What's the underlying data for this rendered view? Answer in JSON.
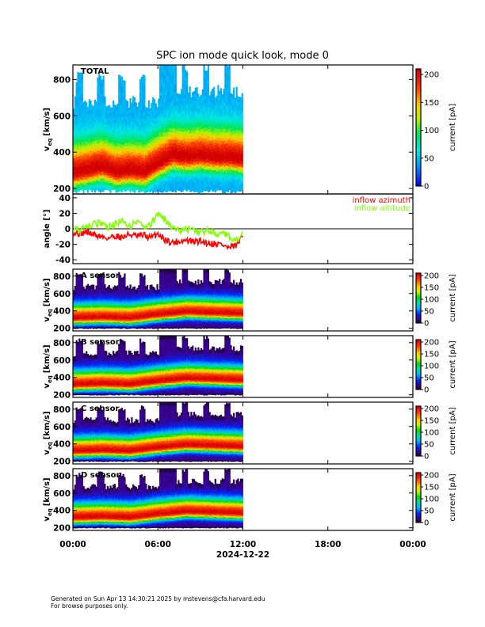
{
  "title": "SPC ion mode quick look, mode 0",
  "footer": {
    "line1": "Generated on Sun Apr 13 14:30:21 2025 by mstevens@cfa.harvard.edu",
    "line2": "For browse purposes only."
  },
  "colors": {
    "azimuth": "#ff0000",
    "altitude": "#80ff00"
  },
  "chart_data": [
    {
      "type": "heatmap",
      "panel": "total",
      "label": "TOTAL",
      "ylabel_main": "v",
      "ylabel_sub": "eq",
      "ylabel_units": "[km/s]",
      "ylim": [
        170,
        880
      ],
      "yticks": [
        "200",
        "400",
        "600",
        "800"
      ],
      "colorbar": {
        "label": "current [pA]",
        "ticks": [
          "0",
          "50",
          "100",
          "150",
          "200"
        ],
        "range": [
          0,
          210
        ]
      },
      "peak_profile": [
        [
          0,
          285
        ],
        [
          1,
          300
        ],
        [
          2,
          320
        ],
        [
          3,
          290
        ],
        [
          4,
          300
        ],
        [
          5,
          290
        ],
        [
          6,
          340
        ],
        [
          7,
          380
        ],
        [
          8,
          370
        ],
        [
          9,
          380
        ],
        [
          10,
          370
        ],
        [
          11,
          370
        ],
        [
          12,
          360
        ]
      ],
      "data_x_range": [
        0,
        12
      ]
    },
    {
      "type": "line",
      "panel": "angle",
      "ylabel": "angle [°]",
      "ylim": [
        -45,
        45
      ],
      "yticks": [
        "40",
        "20",
        "0",
        "-20",
        "-40"
      ],
      "legend_position": "top-right",
      "series": [
        {
          "name": "inflow azimuth",
          "color": "#ff0000",
          "x": [
            0,
            0.5,
            1,
            1.5,
            2,
            2.5,
            3,
            3.5,
            4,
            4.5,
            5,
            5.5,
            6,
            6.5,
            7,
            7.5,
            8,
            8.5,
            9,
            9.5,
            10,
            10.5,
            11,
            11.5,
            12
          ],
          "values": [
            -5,
            -6,
            -4,
            -8,
            -10,
            -12,
            -9,
            -11,
            -7,
            -10,
            -8,
            -12,
            -6,
            -14,
            -18,
            -16,
            -15,
            -17,
            -16,
            -18,
            -19,
            -20,
            -25,
            -22,
            -10
          ]
        },
        {
          "name": "inflow altitude",
          "color": "#80ff00",
          "x": [
            0,
            0.5,
            1,
            1.5,
            2,
            2.5,
            3,
            3.5,
            4,
            4.5,
            5,
            5.5,
            6,
            6.5,
            7,
            7.5,
            8,
            8.5,
            9,
            9.5,
            10,
            10.5,
            11,
            11.5,
            12
          ],
          "values": [
            2,
            -2,
            4,
            6,
            8,
            2,
            6,
            10,
            4,
            8,
            2,
            6,
            18,
            12,
            2,
            -2,
            0,
            -2,
            -4,
            -3,
            -6,
            -5,
            -10,
            -16,
            -4
          ]
        }
      ]
    },
    {
      "type": "heatmap",
      "panel": "A",
      "label": "A sensor",
      "ylabel_main": "v",
      "ylabel_sub": "eq",
      "ylabel_units": "[km/s]",
      "ylim": [
        170,
        880
      ],
      "yticks": [
        "200",
        "400",
        "600",
        "800"
      ],
      "colorbar": {
        "label": "current [pA]",
        "ticks": [
          "0",
          "50",
          "100",
          "150",
          "200"
        ],
        "range": [
          0,
          210
        ]
      },
      "peak_profile": [
        [
          0,
          320
        ],
        [
          2,
          330
        ],
        [
          4,
          320
        ],
        [
          6,
          360
        ],
        [
          8,
          390
        ],
        [
          10,
          380
        ],
        [
          12,
          370
        ]
      ]
    },
    {
      "type": "heatmap",
      "panel": "B",
      "label": "B sensor",
      "ylabel_main": "v",
      "ylabel_sub": "eq",
      "ylabel_units": "[km/s]",
      "ylim": [
        170,
        880
      ],
      "yticks": [
        "200",
        "400",
        "600",
        "800"
      ],
      "colorbar": {
        "label": "current [pA]",
        "ticks": [
          "0",
          "50",
          "100",
          "150",
          "200"
        ],
        "range": [
          0,
          210
        ]
      },
      "peak_profile": [
        [
          0,
          320
        ],
        [
          2,
          330
        ],
        [
          4,
          320
        ],
        [
          6,
          360
        ],
        [
          8,
          390
        ],
        [
          10,
          380
        ],
        [
          12,
          370
        ]
      ]
    },
    {
      "type": "heatmap",
      "panel": "C",
      "label": "C sensor",
      "ylabel_main": "v",
      "ylabel_sub": "eq",
      "ylabel_units": "[km/s]",
      "ylim": [
        170,
        880
      ],
      "yticks": [
        "200",
        "400",
        "600",
        "800"
      ],
      "colorbar": {
        "label": "current [pA]",
        "ticks": [
          "0",
          "50",
          "100",
          "150",
          "200"
        ],
        "range": [
          0,
          210
        ]
      },
      "peak_profile": [
        [
          0,
          320
        ],
        [
          2,
          330
        ],
        [
          4,
          320
        ],
        [
          6,
          360
        ],
        [
          8,
          390
        ],
        [
          10,
          380
        ],
        [
          12,
          370
        ]
      ]
    },
    {
      "type": "heatmap",
      "panel": "D",
      "label": "D sensor",
      "ylabel_main": "v",
      "ylabel_sub": "eq",
      "ylabel_units": "[km/s]",
      "ylim": [
        170,
        880
      ],
      "yticks": [
        "200",
        "400",
        "600",
        "800"
      ],
      "colorbar": {
        "label": "current [pA]",
        "ticks": [
          "0",
          "50",
          "100",
          "150",
          "200"
        ],
        "range": [
          0,
          210
        ]
      },
      "peak_profile": [
        [
          0,
          320
        ],
        [
          2,
          330
        ],
        [
          4,
          320
        ],
        [
          6,
          360
        ],
        [
          8,
          390
        ],
        [
          10,
          380
        ],
        [
          12,
          370
        ]
      ]
    }
  ],
  "x_axis": {
    "ticks": [
      "00:00",
      "06:00",
      "12:00",
      "18:00",
      "00:00"
    ],
    "tick_hours": [
      0,
      6,
      12,
      18,
      24
    ],
    "date": "2024-12-22",
    "range_hours": [
      0,
      24
    ]
  }
}
